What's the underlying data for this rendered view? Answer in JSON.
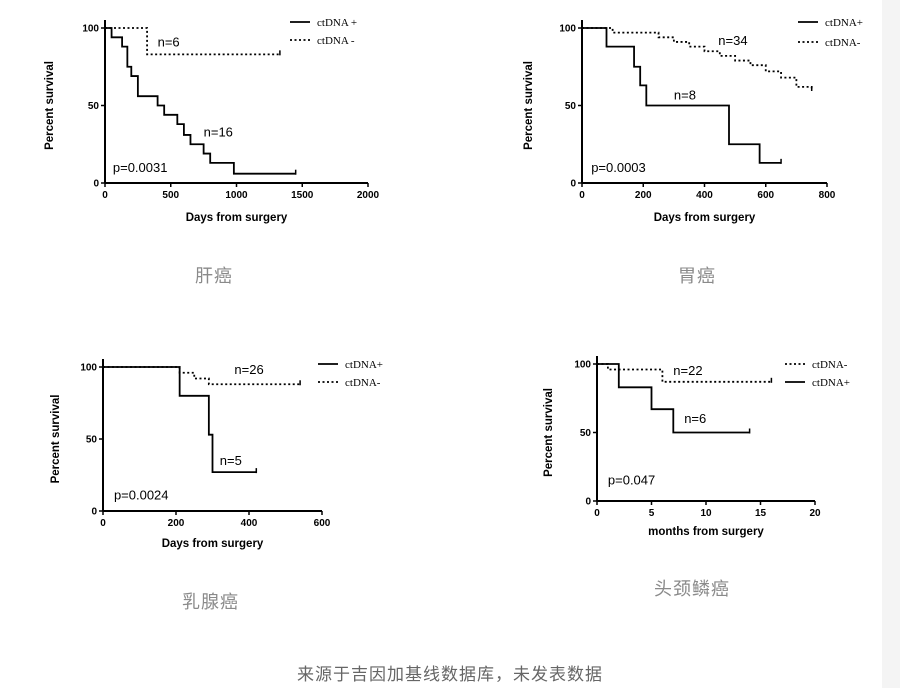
{
  "chart_data": [
    {
      "type": "line",
      "caption": "肝癌",
      "xlabel": "Days from surgery",
      "ylabel": "Percent survival",
      "xlim": [
        0,
        2000
      ],
      "ylim": [
        0,
        100
      ],
      "xticks": [
        0,
        500,
        1000,
        1500,
        2000
      ],
      "yticks": [
        0,
        50,
        100
      ],
      "annotations": [
        {
          "text": "n=6",
          "x": 400,
          "y": 88
        },
        {
          "text": "n=16",
          "x": 750,
          "y": 30
        },
        {
          "text": "p=0.0031",
          "x": 60,
          "y": 7
        }
      ],
      "legend": {
        "placement": "top-right"
      },
      "series": [
        {
          "name": "ctDNA +",
          "style": "solid",
          "x": [
            0,
            50,
            130,
            170,
            200,
            250,
            300,
            400,
            450,
            500,
            550,
            600,
            650,
            700,
            750,
            800,
            980,
            1450
          ],
          "y": [
            100,
            94,
            88,
            75,
            69,
            56,
            56,
            50,
            44,
            44,
            38,
            31,
            25,
            25,
            19,
            13,
            6,
            6
          ]
        },
        {
          "name": "ctDNA -",
          "style": "dotted",
          "x": [
            0,
            320,
            1330
          ],
          "y": [
            100,
            83,
            83
          ]
        }
      ]
    },
    {
      "type": "line",
      "caption": "胃癌",
      "xlabel": "Days from surgery",
      "ylabel": "Percent survival",
      "xlim": [
        0,
        800
      ],
      "ylim": [
        0,
        100
      ],
      "xticks": [
        0,
        200,
        400,
        600,
        800
      ],
      "yticks": [
        0,
        50,
        100
      ],
      "annotations": [
        {
          "text": "n=34",
          "x": 445,
          "y": 89
        },
        {
          "text": "n=8",
          "x": 300,
          "y": 54
        },
        {
          "text": "p=0.0003",
          "x": 30,
          "y": 7
        }
      ],
      "legend": {
        "placement": "top-right"
      },
      "series": [
        {
          "name": "ctDNA+",
          "style": "solid",
          "x": [
            0,
            80,
            170,
            190,
            210,
            480,
            580,
            650
          ],
          "y": [
            100,
            88,
            75,
            63,
            50,
            25,
            13,
            13
          ]
        },
        {
          "name": "ctDNA-",
          "style": "dotted",
          "x": [
            0,
            100,
            250,
            300,
            350,
            400,
            450,
            500,
            550,
            600,
            650,
            700,
            750
          ],
          "y": [
            100,
            97,
            94,
            91,
            88,
            85,
            82,
            79,
            76,
            72,
            68,
            62,
            60
          ]
        }
      ]
    },
    {
      "type": "line",
      "caption": "乳腺癌",
      "xlabel": "Days from surgery",
      "ylabel": "Percent survival",
      "xlim": [
        0,
        600
      ],
      "ylim": [
        0,
        100
      ],
      "xticks": [
        0,
        200,
        400,
        600
      ],
      "yticks": [
        0,
        50,
        100
      ],
      "annotations": [
        {
          "text": "n=26",
          "x": 360,
          "y": 95
        },
        {
          "text": "n=5",
          "x": 320,
          "y": 32
        },
        {
          "text": "p=0.0024",
          "x": 30,
          "y": 8
        }
      ],
      "legend": {
        "placement": "top-right"
      },
      "series": [
        {
          "name": "ctDNA+",
          "style": "solid",
          "x": [
            0,
            210,
            290,
            300,
            420
          ],
          "y": [
            100,
            80,
            53,
            27,
            27
          ]
        },
        {
          "name": "ctDNA-",
          "style": "dotted",
          "x": [
            0,
            210,
            250,
            290,
            320,
            540
          ],
          "y": [
            100,
            96,
            92,
            88,
            88,
            88
          ]
        }
      ]
    },
    {
      "type": "line",
      "caption": "头颈鳞癌",
      "xlabel": "months from surgery",
      "ylabel": "Percent survival",
      "xlim": [
        0,
        20
      ],
      "ylim": [
        0,
        100
      ],
      "xticks": [
        0,
        5,
        10,
        15,
        20
      ],
      "yticks": [
        0,
        50,
        100
      ],
      "annotations": [
        {
          "text": "n=22",
          "x": 7,
          "y": 92
        },
        {
          "text": "n=6",
          "x": 8,
          "y": 57
        },
        {
          "text": "p=0.047",
          "x": 1,
          "y": 12
        }
      ],
      "legend": {
        "placement": "top-right"
      },
      "series": [
        {
          "name": "ctDNA-",
          "style": "dotted",
          "x": [
            0,
            1,
            6,
            16
          ],
          "y": [
            100,
            96,
            87,
            87
          ]
        },
        {
          "name": "ctDNA+",
          "style": "solid",
          "x": [
            0,
            2,
            5,
            7,
            14
          ],
          "y": [
            100,
            83,
            67,
            50,
            50
          ]
        }
      ]
    }
  ],
  "footer": "来源于吉因加基线数据库，未发表数据"
}
